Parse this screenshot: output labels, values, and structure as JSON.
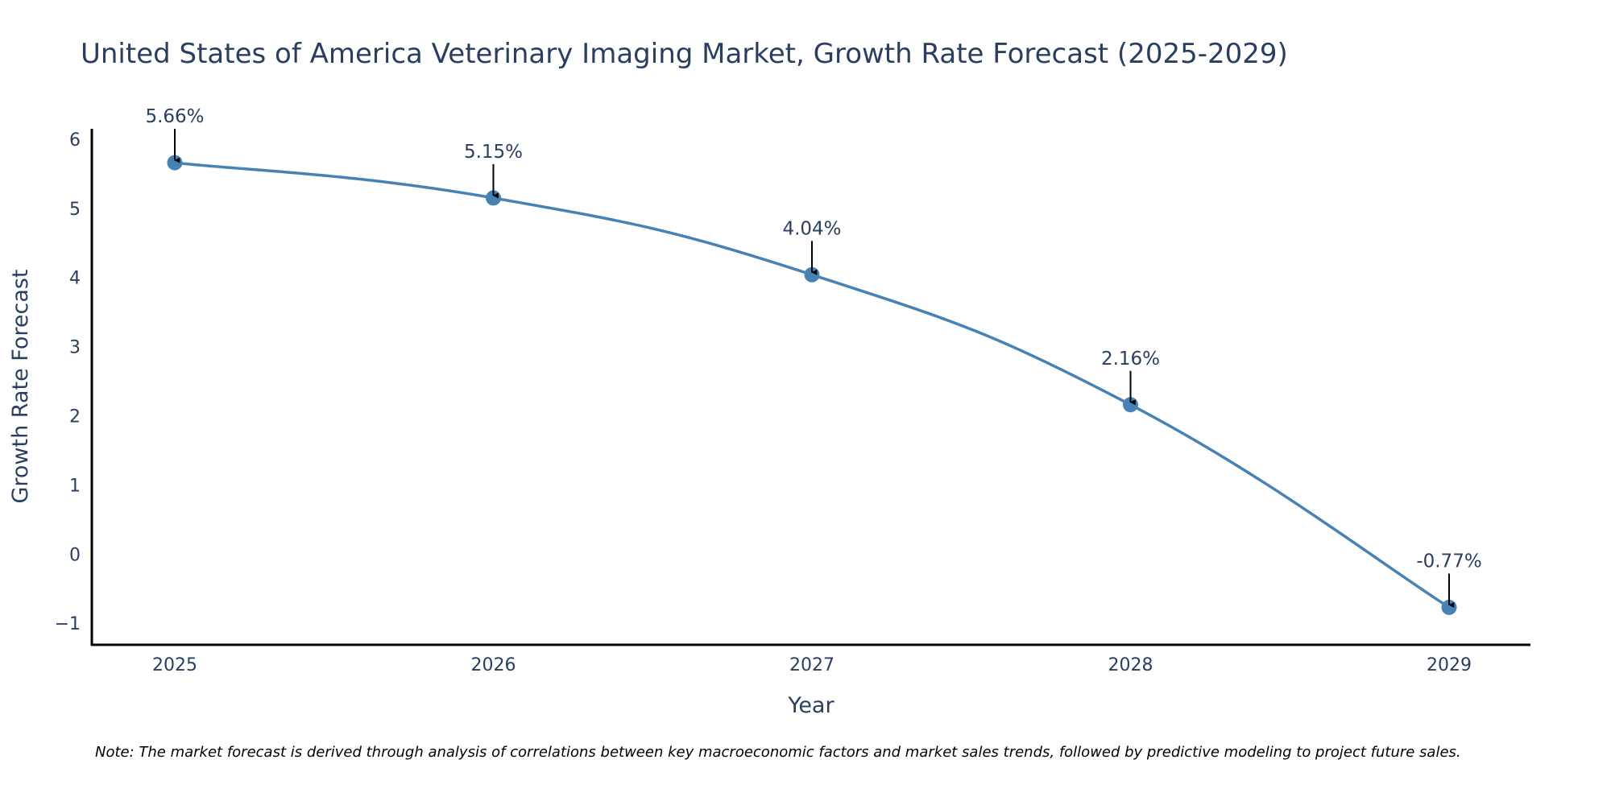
{
  "chart_data": {
    "type": "line",
    "title": "United States of America Veterinary Imaging Market, Growth Rate Forecast (2025-2029)",
    "xlabel": "Year",
    "ylabel": "Growth Rate Forecast",
    "categories": [
      "2025",
      "2026",
      "2027",
      "2028",
      "2029"
    ],
    "series": [
      {
        "name": "Growth Rate Forecast",
        "values": [
          5.66,
          5.15,
          4.04,
          2.16,
          -0.77
        ],
        "labels": [
          "5.66%",
          "5.15%",
          "4.04%",
          "2.16%",
          "-0.77%"
        ]
      }
    ],
    "ylim": [
      -1.3,
      6.15
    ],
    "yticks": [
      -1,
      0,
      1,
      2,
      3,
      4,
      5,
      6
    ],
    "ytick_labels": [
      "−1",
      "0",
      "1",
      "2",
      "3",
      "4",
      "5",
      "6"
    ],
    "grid": false,
    "legend": "none",
    "line_color": "#4682b4",
    "arrow_color": "#000000",
    "note": "Note: The market forecast is derived through analysis of correlations between key macroeconomic factors and market sales trends, followed by predictive modeling to project future sales."
  }
}
